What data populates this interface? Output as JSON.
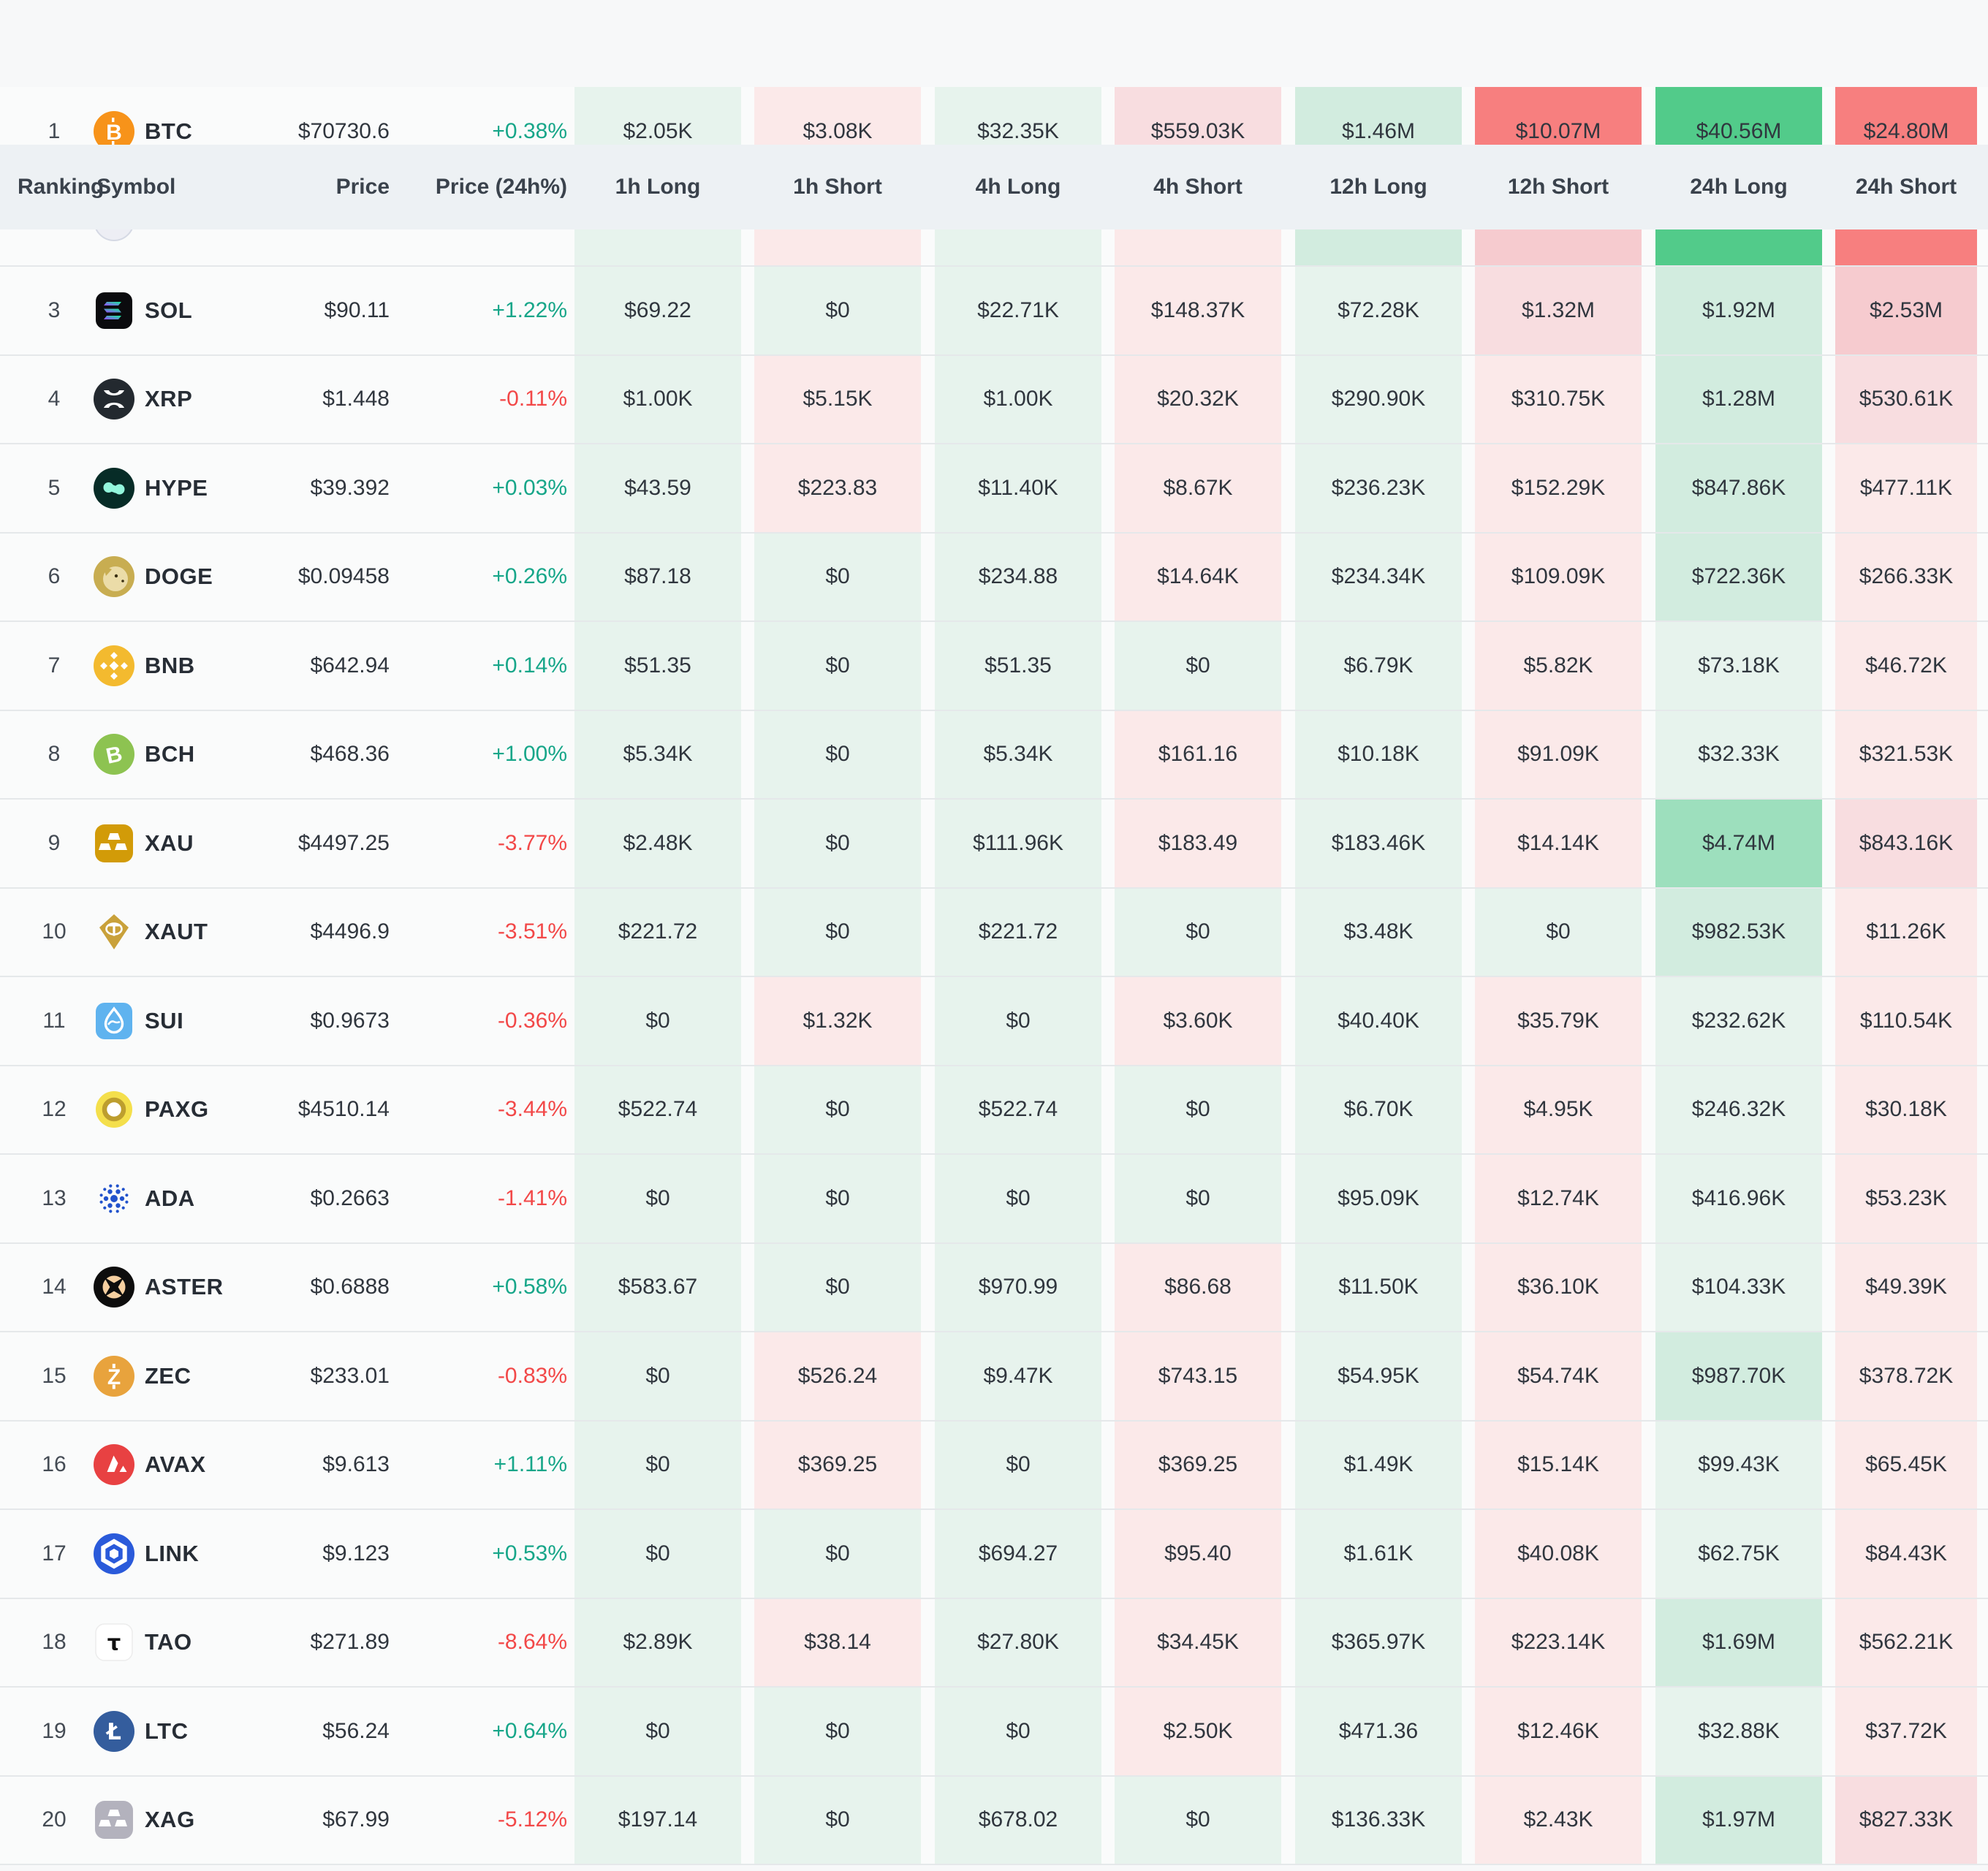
{
  "table": {
    "columns": [
      "Ranking",
      "Symbol",
      "Price",
      "Price (24h%)",
      "1h Long",
      "1h Short",
      "4h Long",
      "4h Short",
      "12h Long",
      "12h Short",
      "24h Long",
      "24h Short"
    ],
    "palette": {
      "g1": "#e7f3ed",
      "g2": "#d2ecdf",
      "g3": "#9ddfbd",
      "g4": "#52cb8a",
      "r1": "#fbe9e9",
      "r2": "#f8dde0",
      "r3": "#f6cbcf",
      "r4": "#f77f7f",
      "pct_up": "#17a689",
      "pct_down": "#f24848"
    },
    "rows": [
      {
        "ranking": "1",
        "symbol": "BTC",
        "icon": "btc-icon",
        "price": "$70730.6",
        "change": "+0.38%",
        "cells": [
          {
            "v": "$2.05K",
            "c": "g1"
          },
          {
            "v": "$3.08K",
            "c": "r1"
          },
          {
            "v": "$32.35K",
            "c": "g1"
          },
          {
            "v": "$559.03K",
            "c": "r2"
          },
          {
            "v": "$1.46M",
            "c": "g2"
          },
          {
            "v": "$10.07M",
            "c": "r4"
          },
          {
            "v": "$40.56M",
            "c": "g4"
          },
          {
            "v": "$24.80M",
            "c": "r4"
          }
        ]
      },
      {
        "ranking": "",
        "symbol": "",
        "icon": "partially-hidden-coin-icon",
        "price": "",
        "change": "",
        "cells": [
          {
            "v": "",
            "c": "g1"
          },
          {
            "v": "",
            "c": "r1"
          },
          {
            "v": "",
            "c": "g1"
          },
          {
            "v": "",
            "c": "r1"
          },
          {
            "v": "",
            "c": "g2"
          },
          {
            "v": "",
            "c": "r3"
          },
          {
            "v": "",
            "c": "g4"
          },
          {
            "v": "",
            "c": "r4"
          }
        ]
      },
      {
        "ranking": "3",
        "symbol": "SOL",
        "icon": "sol-icon",
        "price": "$90.11",
        "change": "+1.22%",
        "cells": [
          {
            "v": "$69.22",
            "c": "g1"
          },
          {
            "v": "$0",
            "c": "g1"
          },
          {
            "v": "$22.71K",
            "c": "g1"
          },
          {
            "v": "$148.37K",
            "c": "r1"
          },
          {
            "v": "$72.28K",
            "c": "g1"
          },
          {
            "v": "$1.32M",
            "c": "r2"
          },
          {
            "v": "$1.92M",
            "c": "g2"
          },
          {
            "v": "$2.53M",
            "c": "r3"
          }
        ]
      },
      {
        "ranking": "4",
        "symbol": "XRP",
        "icon": "xrp-icon",
        "price": "$1.448",
        "change": "-0.11%",
        "cells": [
          {
            "v": "$1.00K",
            "c": "g1"
          },
          {
            "v": "$5.15K",
            "c": "r1"
          },
          {
            "v": "$1.00K",
            "c": "g1"
          },
          {
            "v": "$20.32K",
            "c": "r1"
          },
          {
            "v": "$290.90K",
            "c": "g1"
          },
          {
            "v": "$310.75K",
            "c": "r1"
          },
          {
            "v": "$1.28M",
            "c": "g2"
          },
          {
            "v": "$530.61K",
            "c": "r2"
          }
        ]
      },
      {
        "ranking": "5",
        "symbol": "HYPE",
        "icon": "hype-icon",
        "price": "$39.392",
        "change": "+0.03%",
        "cells": [
          {
            "v": "$43.59",
            "c": "g1"
          },
          {
            "v": "$223.83",
            "c": "r1"
          },
          {
            "v": "$11.40K",
            "c": "g1"
          },
          {
            "v": "$8.67K",
            "c": "r1"
          },
          {
            "v": "$236.23K",
            "c": "g1"
          },
          {
            "v": "$152.29K",
            "c": "r1"
          },
          {
            "v": "$847.86K",
            "c": "g2"
          },
          {
            "v": "$477.11K",
            "c": "r1"
          }
        ]
      },
      {
        "ranking": "6",
        "symbol": "DOGE",
        "icon": "doge-icon",
        "price": "$0.09458",
        "change": "+0.26%",
        "cells": [
          {
            "v": "$87.18",
            "c": "g1"
          },
          {
            "v": "$0",
            "c": "g1"
          },
          {
            "v": "$234.88",
            "c": "g1"
          },
          {
            "v": "$14.64K",
            "c": "r1"
          },
          {
            "v": "$234.34K",
            "c": "g1"
          },
          {
            "v": "$109.09K",
            "c": "r1"
          },
          {
            "v": "$722.36K",
            "c": "g2"
          },
          {
            "v": "$266.33K",
            "c": "r1"
          }
        ]
      },
      {
        "ranking": "7",
        "symbol": "BNB",
        "icon": "bnb-icon",
        "price": "$642.94",
        "change": "+0.14%",
        "cells": [
          {
            "v": "$51.35",
            "c": "g1"
          },
          {
            "v": "$0",
            "c": "g1"
          },
          {
            "v": "$51.35",
            "c": "g1"
          },
          {
            "v": "$0",
            "c": "g1"
          },
          {
            "v": "$6.79K",
            "c": "g1"
          },
          {
            "v": "$5.82K",
            "c": "r1"
          },
          {
            "v": "$73.18K",
            "c": "g1"
          },
          {
            "v": "$46.72K",
            "c": "r1"
          }
        ]
      },
      {
        "ranking": "8",
        "symbol": "BCH",
        "icon": "bch-icon",
        "price": "$468.36",
        "change": "+1.00%",
        "cells": [
          {
            "v": "$5.34K",
            "c": "g1"
          },
          {
            "v": "$0",
            "c": "g1"
          },
          {
            "v": "$5.34K",
            "c": "g1"
          },
          {
            "v": "$161.16",
            "c": "r1"
          },
          {
            "v": "$10.18K",
            "c": "g1"
          },
          {
            "v": "$91.09K",
            "c": "r1"
          },
          {
            "v": "$32.33K",
            "c": "g1"
          },
          {
            "v": "$321.53K",
            "c": "r1"
          }
        ]
      },
      {
        "ranking": "9",
        "symbol": "XAU",
        "icon": "gold-bars-icon",
        "price": "$4497.25",
        "change": "-3.77%",
        "cells": [
          {
            "v": "$2.48K",
            "c": "g1"
          },
          {
            "v": "$0",
            "c": "g1"
          },
          {
            "v": "$111.96K",
            "c": "g1"
          },
          {
            "v": "$183.49",
            "c": "r1"
          },
          {
            "v": "$183.46K",
            "c": "g1"
          },
          {
            "v": "$14.14K",
            "c": "r1"
          },
          {
            "v": "$4.74M",
            "c": "g3"
          },
          {
            "v": "$843.16K",
            "c": "r2"
          }
        ]
      },
      {
        "ranking": "10",
        "symbol": "XAUT",
        "icon": "xaut-icon",
        "price": "$4496.9",
        "change": "-3.51%",
        "cells": [
          {
            "v": "$221.72",
            "c": "g1"
          },
          {
            "v": "$0",
            "c": "g1"
          },
          {
            "v": "$221.72",
            "c": "g1"
          },
          {
            "v": "$0",
            "c": "g1"
          },
          {
            "v": "$3.48K",
            "c": "g1"
          },
          {
            "v": "$0",
            "c": "g1"
          },
          {
            "v": "$982.53K",
            "c": "g2"
          },
          {
            "v": "$11.26K",
            "c": "r1"
          }
        ]
      },
      {
        "ranking": "11",
        "symbol": "SUI",
        "icon": "sui-icon",
        "price": "$0.9673",
        "change": "-0.36%",
        "cells": [
          {
            "v": "$0",
            "c": "g1"
          },
          {
            "v": "$1.32K",
            "c": "r1"
          },
          {
            "v": "$0",
            "c": "g1"
          },
          {
            "v": "$3.60K",
            "c": "r1"
          },
          {
            "v": "$40.40K",
            "c": "g1"
          },
          {
            "v": "$35.79K",
            "c": "r1"
          },
          {
            "v": "$232.62K",
            "c": "g1"
          },
          {
            "v": "$110.54K",
            "c": "r1"
          }
        ]
      },
      {
        "ranking": "12",
        "symbol": "PAXG",
        "icon": "paxg-icon",
        "price": "$4510.14",
        "change": "-3.44%",
        "cells": [
          {
            "v": "$522.74",
            "c": "g1"
          },
          {
            "v": "$0",
            "c": "g1"
          },
          {
            "v": "$522.74",
            "c": "g1"
          },
          {
            "v": "$0",
            "c": "g1"
          },
          {
            "v": "$6.70K",
            "c": "g1"
          },
          {
            "v": "$4.95K",
            "c": "r1"
          },
          {
            "v": "$246.32K",
            "c": "g1"
          },
          {
            "v": "$30.18K",
            "c": "r1"
          }
        ]
      },
      {
        "ranking": "13",
        "symbol": "ADA",
        "icon": "ada-icon",
        "price": "$0.2663",
        "change": "-1.41%",
        "cells": [
          {
            "v": "$0",
            "c": "g1"
          },
          {
            "v": "$0",
            "c": "g1"
          },
          {
            "v": "$0",
            "c": "g1"
          },
          {
            "v": "$0",
            "c": "g1"
          },
          {
            "v": "$95.09K",
            "c": "g1"
          },
          {
            "v": "$12.74K",
            "c": "r1"
          },
          {
            "v": "$416.96K",
            "c": "g1"
          },
          {
            "v": "$53.23K",
            "c": "r1"
          }
        ]
      },
      {
        "ranking": "14",
        "symbol": "ASTER",
        "icon": "aster-icon",
        "price": "$0.6888",
        "change": "+0.58%",
        "cells": [
          {
            "v": "$583.67",
            "c": "g1"
          },
          {
            "v": "$0",
            "c": "g1"
          },
          {
            "v": "$970.99",
            "c": "g1"
          },
          {
            "v": "$86.68",
            "c": "r1"
          },
          {
            "v": "$11.50K",
            "c": "g1"
          },
          {
            "v": "$36.10K",
            "c": "r1"
          },
          {
            "v": "$104.33K",
            "c": "g1"
          },
          {
            "v": "$49.39K",
            "c": "r1"
          }
        ]
      },
      {
        "ranking": "15",
        "symbol": "ZEC",
        "icon": "zec-icon",
        "price": "$233.01",
        "change": "-0.83%",
        "cells": [
          {
            "v": "$0",
            "c": "g1"
          },
          {
            "v": "$526.24",
            "c": "r1"
          },
          {
            "v": "$9.47K",
            "c": "g1"
          },
          {
            "v": "$743.15",
            "c": "r1"
          },
          {
            "v": "$54.95K",
            "c": "g1"
          },
          {
            "v": "$54.74K",
            "c": "r1"
          },
          {
            "v": "$987.70K",
            "c": "g2"
          },
          {
            "v": "$378.72K",
            "c": "r1"
          }
        ]
      },
      {
        "ranking": "16",
        "symbol": "AVAX",
        "icon": "avax-icon",
        "price": "$9.613",
        "change": "+1.11%",
        "cells": [
          {
            "v": "$0",
            "c": "g1"
          },
          {
            "v": "$369.25",
            "c": "r1"
          },
          {
            "v": "$0",
            "c": "g1"
          },
          {
            "v": "$369.25",
            "c": "r1"
          },
          {
            "v": "$1.49K",
            "c": "g1"
          },
          {
            "v": "$15.14K",
            "c": "r1"
          },
          {
            "v": "$99.43K",
            "c": "g1"
          },
          {
            "v": "$65.45K",
            "c": "r1"
          }
        ]
      },
      {
        "ranking": "17",
        "symbol": "LINK",
        "icon": "link-icon",
        "price": "$9.123",
        "change": "+0.53%",
        "cells": [
          {
            "v": "$0",
            "c": "g1"
          },
          {
            "v": "$0",
            "c": "g1"
          },
          {
            "v": "$694.27",
            "c": "g1"
          },
          {
            "v": "$95.40",
            "c": "r1"
          },
          {
            "v": "$1.61K",
            "c": "g1"
          },
          {
            "v": "$40.08K",
            "c": "r1"
          },
          {
            "v": "$62.75K",
            "c": "g1"
          },
          {
            "v": "$84.43K",
            "c": "r1"
          }
        ]
      },
      {
        "ranking": "18",
        "symbol": "TAO",
        "icon": "tao-icon",
        "price": "$271.89",
        "change": "-8.64%",
        "cells": [
          {
            "v": "$2.89K",
            "c": "g1"
          },
          {
            "v": "$38.14",
            "c": "r1"
          },
          {
            "v": "$27.80K",
            "c": "g1"
          },
          {
            "v": "$34.45K",
            "c": "r1"
          },
          {
            "v": "$365.97K",
            "c": "g1"
          },
          {
            "v": "$223.14K",
            "c": "r1"
          },
          {
            "v": "$1.69M",
            "c": "g2"
          },
          {
            "v": "$562.21K",
            "c": "r1"
          }
        ]
      },
      {
        "ranking": "19",
        "symbol": "LTC",
        "icon": "ltc-icon",
        "price": "$56.24",
        "change": "+0.64%",
        "cells": [
          {
            "v": "$0",
            "c": "g1"
          },
          {
            "v": "$0",
            "c": "g1"
          },
          {
            "v": "$0",
            "c": "g1"
          },
          {
            "v": "$2.50K",
            "c": "r1"
          },
          {
            "v": "$471.36",
            "c": "g1"
          },
          {
            "v": "$12.46K",
            "c": "r1"
          },
          {
            "v": "$32.88K",
            "c": "g1"
          },
          {
            "v": "$37.72K",
            "c": "r1"
          }
        ]
      },
      {
        "ranking": "20",
        "symbol": "XAG",
        "icon": "silver-bars-icon",
        "price": "$67.99",
        "change": "-5.12%",
        "cells": [
          {
            "v": "$197.14",
            "c": "g1"
          },
          {
            "v": "$0",
            "c": "g1"
          },
          {
            "v": "$678.02",
            "c": "g1"
          },
          {
            "v": "$0",
            "c": "g1"
          },
          {
            "v": "$136.33K",
            "c": "g1"
          },
          {
            "v": "$2.43K",
            "c": "r1"
          },
          {
            "v": "$1.97M",
            "c": "g2"
          },
          {
            "v": "$827.33K",
            "c": "r2"
          }
        ]
      }
    ]
  }
}
